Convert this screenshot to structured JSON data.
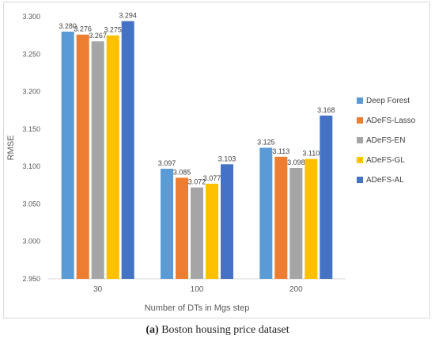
{
  "caption": {
    "tag": "(a)",
    "text": "Boston housing price dataset"
  },
  "chart_data": {
    "type": "bar",
    "xlabel": "Number of DTs in Mgs step",
    "ylabel": "RMSE",
    "ylim": [
      2.95,
      3.3
    ],
    "yticks": [
      "2.950",
      "3.000",
      "3.050",
      "3.100",
      "3.150",
      "3.200",
      "3.250",
      "3.300"
    ],
    "grid": false,
    "legend_position": "right",
    "categories": [
      "30",
      "100",
      "200"
    ],
    "series": [
      {
        "name": "Deep Forest",
        "color": "#5b9bd5",
        "values": [
          3.28,
          3.097,
          3.125
        ],
        "labels": [
          "3.280",
          "3.097",
          "3.125"
        ]
      },
      {
        "name": "ADeFS-Lasso",
        "color": "#ed7d31",
        "values": [
          3.276,
          3.085,
          3.113
        ],
        "labels": [
          "3.276",
          "3.085",
          "3.113"
        ]
      },
      {
        "name": "ADeFS-EN",
        "color": "#a5a5a5",
        "values": [
          3.267,
          3.072,
          3.098
        ],
        "labels": [
          "3.267",
          "3.072",
          "3.098"
        ]
      },
      {
        "name": "ADeFS-GL",
        "color": "#ffc000",
        "values": [
          3.275,
          3.077,
          3.11
        ],
        "labels": [
          "3.275",
          "3.077",
          "3.110"
        ]
      },
      {
        "name": "ADeFS-AL",
        "color": "#4472c4",
        "values": [
          3.294,
          3.103,
          3.168
        ],
        "labels": [
          "3.294",
          "3.103",
          "3.168"
        ]
      }
    ]
  }
}
